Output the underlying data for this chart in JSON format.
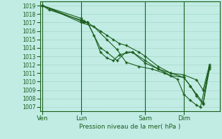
{
  "xlabel": "Pression niveau de la mer( hPa )",
  "bg_color": "#c0ece4",
  "grid_major_color": "#aaddcc",
  "grid_minor_color": "#d0f0e8",
  "line_color": "#1a5c1a",
  "ylim": [
    1006.5,
    1019.5
  ],
  "yticks": [
    1007,
    1008,
    1009,
    1010,
    1011,
    1012,
    1013,
    1014,
    1015,
    1016,
    1017,
    1018,
    1019
  ],
  "xtick_labels": [
    "Ven",
    "Lun",
    "Sam",
    "Dim"
  ],
  "xtick_positions": [
    0.0,
    3.0,
    8.0,
    11.0
  ],
  "xlim": [
    -0.2,
    13.8
  ],
  "lines": [
    {
      "x": [
        0,
        0.5,
        3.0,
        3.2,
        3.5,
        4.5,
        5.0,
        5.5,
        6.0,
        6.5,
        7.5,
        8.0,
        9.0,
        10.0,
        11.0,
        12.0,
        12.5,
        13.0
      ],
      "y": [
        1019,
        1018.5,
        1017.3,
        1017.0,
        1017.0,
        1016.0,
        1015.5,
        1015.0,
        1014.5,
        1014.3,
        1013.5,
        1013.0,
        1011.8,
        1011.0,
        1010.8,
        1010.2,
        1009.0,
        1012.0
      ]
    },
    {
      "x": [
        0,
        3.0,
        3.2,
        3.5,
        4.0,
        4.5,
        5.0,
        5.5,
        6.0,
        7.0,
        8.0,
        9.0,
        10.0,
        11.0,
        11.5,
        12.0,
        12.5,
        13.0
      ],
      "y": [
        1019,
        1017.5,
        1017.2,
        1017.0,
        1015.5,
        1013.5,
        1012.8,
        1012.5,
        1013.2,
        1013.5,
        1012.5,
        1011.5,
        1011.0,
        1010.5,
        1009.5,
        1008.5,
        1007.5,
        1011.8
      ]
    },
    {
      "x": [
        0,
        3.0,
        3.5,
        4.5,
        5.0,
        5.8,
        6.5,
        7.0,
        8.0,
        9.0,
        10.0,
        11.0,
        11.5,
        12.0,
        12.5,
        13.0
      ],
      "y": [
        1019,
        1017.2,
        1017.0,
        1014.0,
        1013.5,
        1012.5,
        1013.5,
        1013.5,
        1012.2,
        1011.5,
        1010.7,
        1010.5,
        1009.5,
        1008.3,
        1007.3,
        1011.5
      ]
    },
    {
      "x": [
        0,
        3.0,
        4.0,
        5.0,
        5.8,
        6.5,
        7.5,
        8.5,
        9.5,
        10.5,
        11.0,
        11.5,
        12.0,
        12.3,
        13.0
      ],
      "y": [
        1019,
        1017.0,
        1016.5,
        1015.0,
        1013.8,
        1012.3,
        1011.8,
        1011.5,
        1011.0,
        1010.3,
        1008.5,
        1007.8,
        1007.2,
        1007.0,
        1011.8
      ]
    }
  ]
}
